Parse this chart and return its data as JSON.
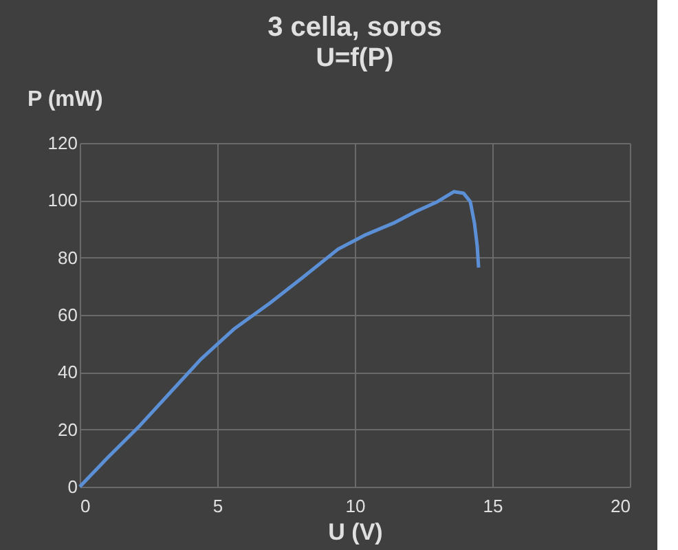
{
  "chart_data": {
    "type": "line",
    "title": "3 cella, soros",
    "subtitle": "U=f(P)",
    "xlabel": "U (V)",
    "ylabel": "P (mW)",
    "x": [
      0,
      1,
      2.2,
      3.3,
      4.4,
      5.6,
      6.9,
      8.1,
      9.4,
      10.4,
      11.4,
      12.2,
      13.0,
      13.6,
      13.95,
      14.2,
      14.35,
      14.45,
      14.5
    ],
    "series": [
      {
        "color": "#5b8fd6",
        "values": [
          0,
          10,
          21.5,
          33,
          44.5,
          55,
          64,
          73,
          83,
          88,
          92,
          96,
          99.5,
          103,
          102.5,
          99.5,
          92,
          84,
          76.5
        ]
      }
    ],
    "xlim": [
      0,
      20
    ],
    "xticks": [
      0,
      5,
      10,
      15,
      20
    ],
    "ylim": [
      0,
      120
    ],
    "yticks": [
      0,
      20,
      40,
      60,
      80,
      100,
      120
    ],
    "grid": true,
    "marker": "none",
    "line_style": "solid"
  }
}
